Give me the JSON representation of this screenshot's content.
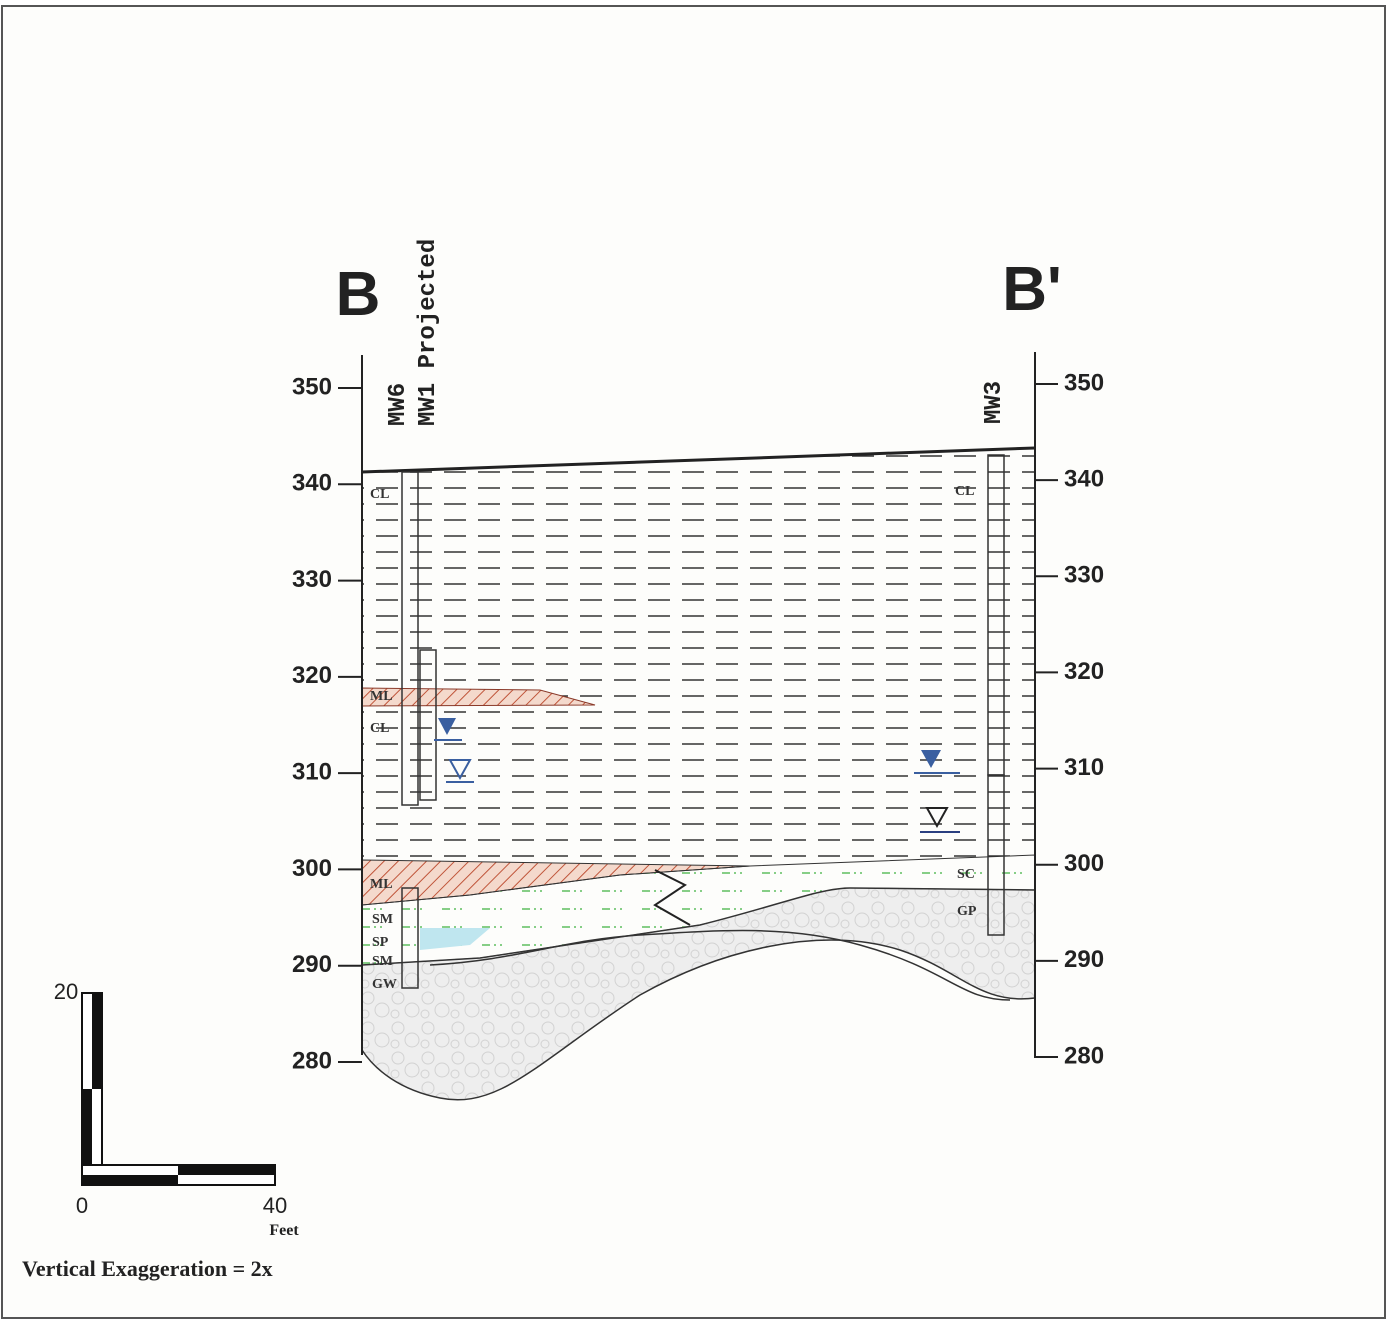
{
  "section": {
    "start_label": "B",
    "end_label": "B'"
  },
  "wells": [
    {
      "label": "MW6"
    },
    {
      "label": "MW1 Projected"
    },
    {
      "label": "MW3"
    }
  ],
  "elevation_axis": {
    "left_ticks": [
      350,
      340,
      330,
      320,
      310,
      300,
      290,
      280
    ],
    "right_ticks": [
      350,
      340,
      330,
      320,
      310,
      300,
      290,
      280
    ]
  },
  "soil_labels": {
    "left": [
      "CL",
      "ML",
      "CL",
      "ML",
      "SM",
      "SP",
      "SM",
      "GW"
    ],
    "right": [
      "CL",
      "SC",
      "GP"
    ]
  },
  "scale": {
    "vertical_ticks": [
      20
    ],
    "horizontal_ticks": [
      0,
      40
    ],
    "unit": "Feet",
    "note": "Vertical Exaggeration = 2x"
  }
}
